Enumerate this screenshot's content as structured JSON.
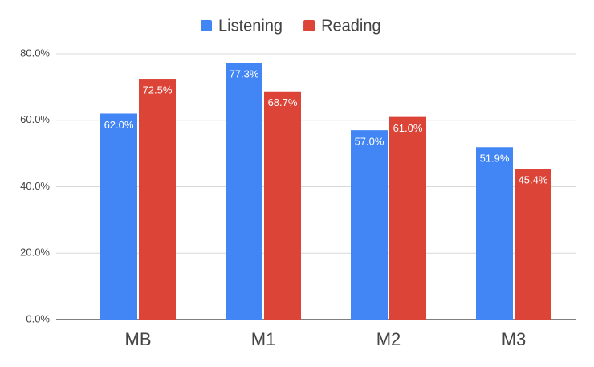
{
  "chart_data": {
    "type": "bar",
    "categories": [
      "MB",
      "M1",
      "M2",
      "M3"
    ],
    "series": [
      {
        "name": "Listening",
        "color": "#4285f4",
        "values": [
          62.0,
          77.3,
          57.0,
          51.9
        ],
        "value_labels": [
          "62.0%",
          "77.3%",
          "57.0%",
          "51.9%"
        ]
      },
      {
        "name": "Reading",
        "color": "#db4437",
        "values": [
          72.5,
          68.7,
          61.0,
          45.4
        ],
        "value_labels": [
          "72.5%",
          "68.7%",
          "61.0%",
          "45.4%"
        ]
      }
    ],
    "ylim": [
      0,
      80
    ],
    "yticks": [
      {
        "value": 0,
        "label": "0.0%"
      },
      {
        "value": 20,
        "label": "20.0%"
      },
      {
        "value": 40,
        "label": "40.0%"
      },
      {
        "value": 60,
        "label": "60.0%"
      },
      {
        "value": 80,
        "label": "80.0%"
      }
    ],
    "grid": true,
    "legend": "top"
  }
}
